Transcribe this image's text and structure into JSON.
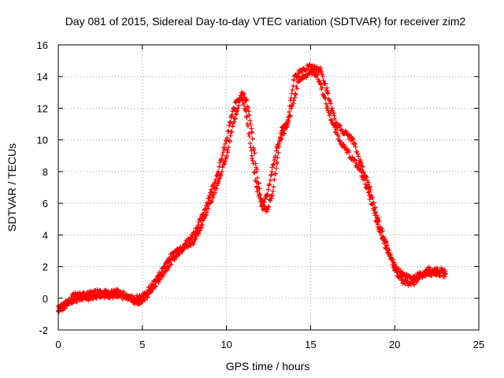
{
  "chart_data": {
    "type": "scatter",
    "title": "Day 081 of 2015, Sidereal Day-to-day VTEC variation (SDTVAR) for receiver zim2",
    "xlabel": "GPS time / hours",
    "ylabel": "SDTVAR / TECUs",
    "xlim": [
      0,
      25
    ],
    "ylim": [
      -2,
      16
    ],
    "xticks": [
      "0",
      "5",
      "10",
      "15",
      "20",
      "25"
    ],
    "yticks": [
      "-2",
      "0",
      "2",
      "4",
      "6",
      "8",
      "10",
      "12",
      "14",
      "16"
    ],
    "grid": true,
    "marker": "+",
    "series": [
      {
        "name": "SDTVAR",
        "color": "#ff0000",
        "x": [
          0.0,
          0.5,
          1.0,
          1.5,
          2.0,
          2.5,
          3.0,
          3.5,
          4.0,
          4.5,
          5.0,
          5.5,
          6.0,
          6.5,
          7.0,
          7.5,
          8.0,
          8.5,
          9.0,
          9.5,
          10.0,
          10.3,
          10.6,
          10.9,
          11.2,
          11.5,
          11.8,
          12.1,
          12.4,
          12.7,
          13.0,
          13.3,
          13.6,
          14.0,
          14.3,
          14.6,
          15.0,
          15.3,
          15.6,
          16.0,
          16.5,
          17.0,
          17.5,
          18.0,
          18.5,
          19.0,
          19.5,
          20.0,
          20.5,
          21.0,
          21.5,
          22.0,
          22.5,
          23.0
        ],
        "y": [
          -0.5,
          -0.3,
          -0.1,
          0.0,
          0.1,
          0.2,
          0.2,
          0.1,
          0.1,
          0.0,
          0.1,
          0.7,
          1.5,
          2.4,
          3.0,
          3.4,
          4.0,
          5.0,
          6.5,
          8.0,
          10.0,
          11.5,
          12.5,
          12.8,
          11.5,
          9.0,
          7.0,
          6.0,
          6.5,
          8.0,
          9.5,
          10.3,
          10.8,
          12.5,
          13.8,
          14.0,
          14.3,
          14.2,
          13.5,
          12.0,
          10.5,
          9.5,
          8.8,
          8.0,
          6.5,
          4.5,
          3.2,
          2.0,
          1.5,
          1.2,
          1.5,
          1.6,
          1.6,
          1.5
        ],
        "x2": [
          0.0,
          0.5,
          1.0,
          1.5,
          2.0,
          2.5,
          3.0,
          3.5,
          4.0,
          4.5,
          5.0,
          5.5,
          6.0,
          6.5,
          7.0,
          7.5,
          8.0,
          8.5,
          9.0,
          9.5,
          10.0,
          10.3,
          10.6,
          10.9,
          11.2,
          11.5,
          11.8,
          12.1,
          12.4,
          12.7,
          13.0,
          13.3,
          13.6,
          14.0,
          14.3,
          14.6,
          15.0,
          15.3,
          15.6,
          16.0,
          16.5,
          17.0,
          17.5,
          18.0,
          18.5,
          19.0,
          19.5,
          20.0,
          20.5,
          21.0,
          21.5,
          22.0,
          22.5,
          23.0
        ],
        "y2": [
          -0.8,
          -0.4,
          0.3,
          0.2,
          0.3,
          0.5,
          0.3,
          0.4,
          0.2,
          -0.2,
          -0.2,
          0.4,
          1.2,
          2.0,
          2.7,
          3.2,
          3.5,
          4.5,
          6.0,
          7.3,
          9.0,
          10.5,
          11.8,
          13.0,
          12.5,
          10.5,
          8.0,
          5.8,
          5.6,
          6.5,
          8.5,
          10.8,
          11.0,
          13.8,
          14.3,
          14.5,
          14.6,
          14.5,
          14.4,
          13.0,
          11.0,
          10.5,
          10.0,
          8.5,
          7.0,
          5.0,
          3.5,
          1.8,
          1.1,
          0.9,
          1.3,
          1.8,
          1.8,
          1.7
        ]
      }
    ]
  }
}
